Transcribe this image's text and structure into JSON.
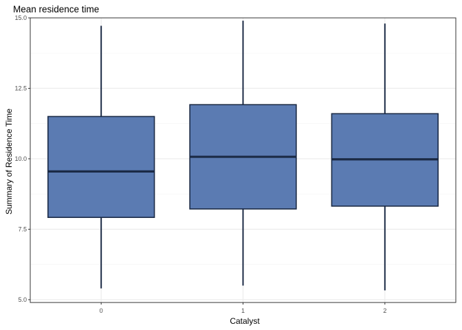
{
  "chart_data": {
    "type": "boxplot",
    "title": "Mean residence time",
    "xlabel": "Catalyst",
    "ylabel": "Summary of Residence Time",
    "categories": [
      "0",
      "1",
      "2"
    ],
    "boxes": [
      {
        "category": "0",
        "min": 5.4,
        "q1": 7.92,
        "median": 9.55,
        "q3": 11.5,
        "max": 14.72
      },
      {
        "category": "1",
        "min": 5.5,
        "q1": 8.22,
        "median": 10.07,
        "q3": 11.92,
        "max": 14.9
      },
      {
        "category": "2",
        "min": 5.33,
        "q1": 8.32,
        "median": 9.98,
        "q3": 11.6,
        "max": 14.8
      }
    ],
    "ylim": [
      4.9,
      15.0
    ],
    "yticks": [
      5.0,
      7.5,
      10.0,
      12.5,
      15.0
    ],
    "ytick_labels": [
      "5.0",
      "7.5",
      "10.0",
      "12.5",
      "15.0"
    ],
    "grid": true,
    "colors": {
      "box_fill": "#5b7bb2",
      "box_outline": "#1b2a45",
      "grid": "#ebebeb",
      "panel_border": "#333333"
    }
  }
}
